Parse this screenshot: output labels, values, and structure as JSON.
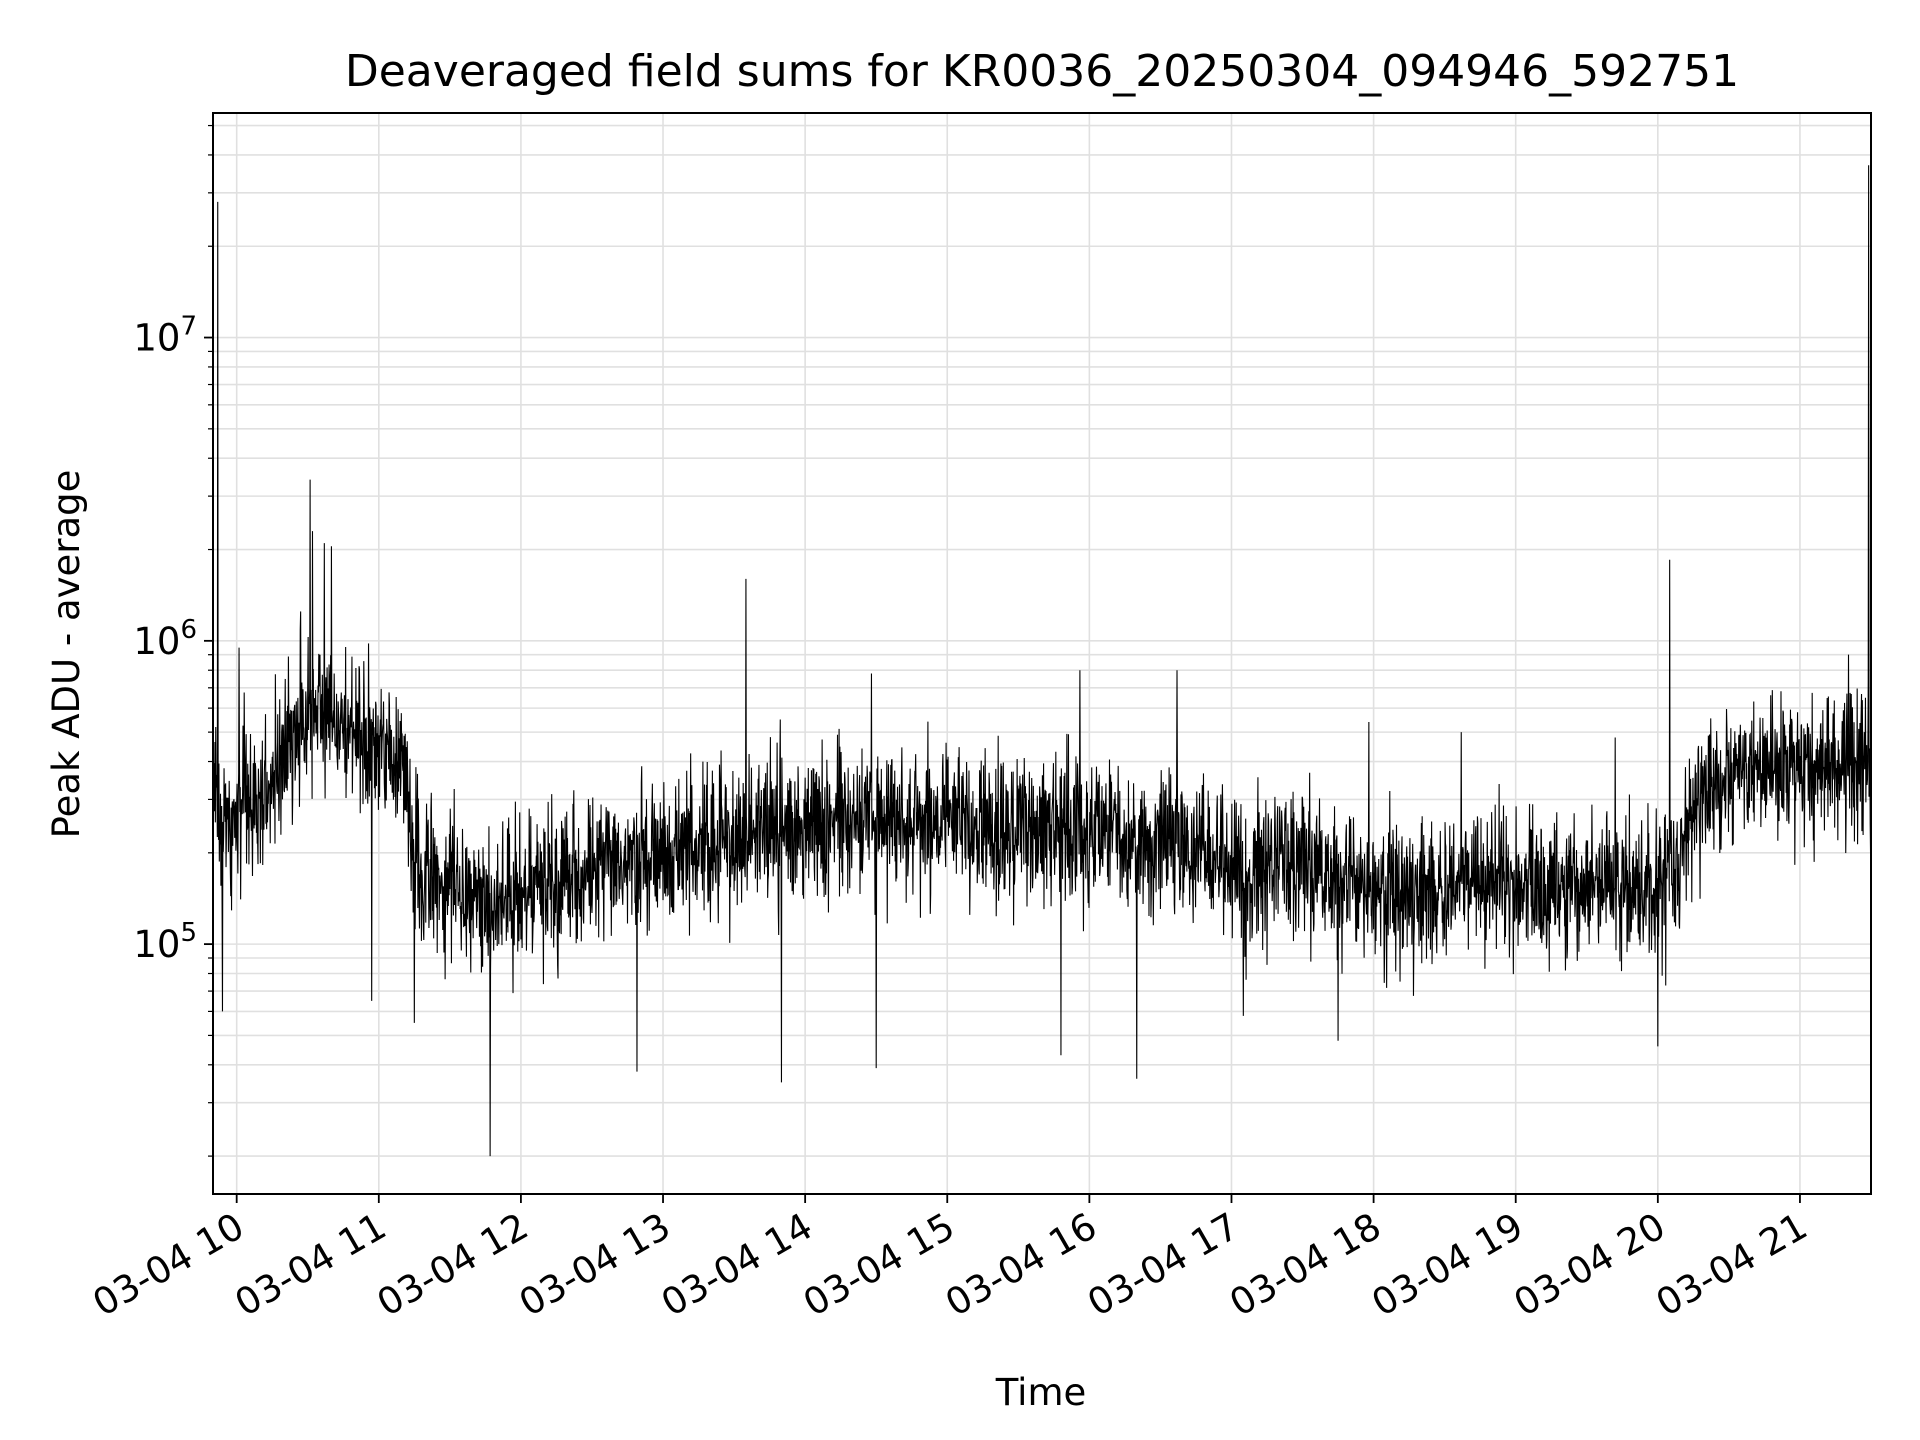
{
  "chart_data": {
    "type": "line",
    "title": "Deaveraged field sums for KR0036_20250304_094946_592751",
    "xlabel": "Time",
    "ylabel": "Peak ADU - average",
    "yscale": "log",
    "ylim": [
      15000,
      55000000
    ],
    "xlim": [
      "2025-03-04 09:50",
      "2025-03-04 21:30"
    ],
    "grid": "both",
    "line_color": "#000000",
    "grid_color": "#e0e0e0",
    "x_ticks": [
      {
        "value": "2025-03-04 10:00",
        "label": "03-04 10"
      },
      {
        "value": "2025-03-04 11:00",
        "label": "03-04 11"
      },
      {
        "value": "2025-03-04 12:00",
        "label": "03-04 12"
      },
      {
        "value": "2025-03-04 13:00",
        "label": "03-04 13"
      },
      {
        "value": "2025-03-04 14:00",
        "label": "03-04 14"
      },
      {
        "value": "2025-03-04 15:00",
        "label": "03-04 15"
      },
      {
        "value": "2025-03-04 16:00",
        "label": "03-04 16"
      },
      {
        "value": "2025-03-04 17:00",
        "label": "03-04 17"
      },
      {
        "value": "2025-03-04 18:00",
        "label": "03-04 18"
      },
      {
        "value": "2025-03-04 19:00",
        "label": "03-04 19"
      },
      {
        "value": "2025-03-04 20:00",
        "label": "03-04 20"
      },
      {
        "value": "2025-03-04 21:00",
        "label": "03-04 21"
      }
    ],
    "y_ticks": [
      {
        "value": 100000,
        "base": "10",
        "exp": "5"
      },
      {
        "value": 1000000,
        "base": "10",
        "exp": "6"
      },
      {
        "value": 10000000,
        "base": "10",
        "exp": "7"
      }
    ],
    "series": [
      {
        "noise_spread_dex": 0.2,
        "envelope": [
          [
            "2025-03-04 09:50",
            300000
          ],
          [
            "2025-03-04 09:56",
            250000
          ],
          [
            "2025-03-04 10:10",
            300000
          ],
          [
            "2025-03-04 10:25",
            500000
          ],
          [
            "2025-03-04 10:35",
            620000
          ],
          [
            "2025-03-04 10:50",
            480000
          ],
          [
            "2025-03-04 11:10",
            400000
          ],
          [
            "2025-03-04 11:15",
            180000
          ],
          [
            "2025-03-04 11:50",
            140000
          ],
          [
            "2025-03-04 12:30",
            170000
          ],
          [
            "2025-03-04 13:00",
            190000
          ],
          [
            "2025-03-04 13:40",
            240000
          ],
          [
            "2025-03-04 14:30",
            260000
          ],
          [
            "2025-03-04 15:30",
            240000
          ],
          [
            "2025-03-04 16:40",
            220000
          ],
          [
            "2025-03-04 16:50",
            180000
          ],
          [
            "2025-03-04 17:20",
            190000
          ],
          [
            "2025-03-04 18:00",
            150000
          ],
          [
            "2025-03-04 19:00",
            160000
          ],
          [
            "2025-03-04 20:00",
            150000
          ],
          [
            "2025-03-04 20:10",
            200000
          ],
          [
            "2025-03-04 20:20",
            350000
          ],
          [
            "2025-03-04 21:30",
            400000
          ]
        ],
        "peaks": [
          [
            "2025-03-04 09:52",
            28000000
          ],
          [
            "2025-03-04 10:01",
            950000
          ],
          [
            "2025-03-04 10:27",
            1250000
          ],
          [
            "2025-03-04 10:31",
            3400000
          ],
          [
            "2025-03-04 10:32",
            2300000
          ],
          [
            "2025-03-04 10:37",
            2100000
          ],
          [
            "2025-03-04 10:40",
            2050000
          ],
          [
            "2025-03-04 13:35",
            1600000
          ],
          [
            "2025-03-04 14:28",
            780000
          ],
          [
            "2025-03-04 15:56",
            800000
          ],
          [
            "2025-03-04 16:37",
            800000
          ],
          [
            "2025-03-04 17:58",
            540000
          ],
          [
            "2025-03-04 18:37",
            500000
          ],
          [
            "2025-03-04 19:42",
            480000
          ],
          [
            "2025-03-04 20:05",
            1850000
          ],
          [
            "2025-03-04 21:29",
            37000000
          ]
        ],
        "dips": [
          [
            "2025-03-04 09:54",
            60000
          ],
          [
            "2025-03-04 10:57",
            65000
          ],
          [
            "2025-03-04 11:15",
            55000
          ],
          [
            "2025-03-04 11:47",
            20000
          ],
          [
            "2025-03-04 12:49",
            38000
          ],
          [
            "2025-03-04 13:50",
            35000
          ],
          [
            "2025-03-04 14:30",
            39000
          ],
          [
            "2025-03-04 15:48",
            43000
          ],
          [
            "2025-03-04 16:20",
            36000
          ],
          [
            "2025-03-04 17:05",
            58000
          ],
          [
            "2025-03-04 17:45",
            48000
          ],
          [
            "2025-03-04 20:00",
            46000
          ]
        ]
      }
    ]
  }
}
